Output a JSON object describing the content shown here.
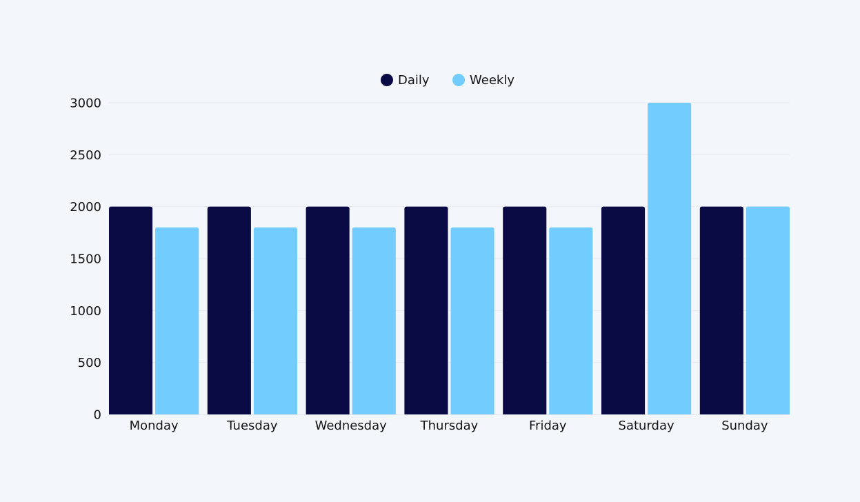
{
  "chart_data": {
    "type": "bar",
    "categories": [
      "Monday",
      "Tuesday",
      "Wednesday",
      "Thursday",
      "Friday",
      "Saturday",
      "Sunday"
    ],
    "series": [
      {
        "name": "Daily",
        "color": "#0a0b45",
        "values": [
          2000,
          2000,
          2000,
          2000,
          2000,
          2000,
          2000
        ]
      },
      {
        "name": "Weekly",
        "color": "#72ccfd",
        "values": [
          1800,
          1800,
          1800,
          1800,
          1800,
          3000,
          2000
        ]
      }
    ],
    "yticks": [
      0,
      500,
      1000,
      1500,
      2000,
      2500,
      3000
    ],
    "ylim": [
      0,
      3000
    ],
    "grid": true,
    "legend_position": "top-center",
    "title": "",
    "xlabel": "",
    "ylabel": ""
  }
}
